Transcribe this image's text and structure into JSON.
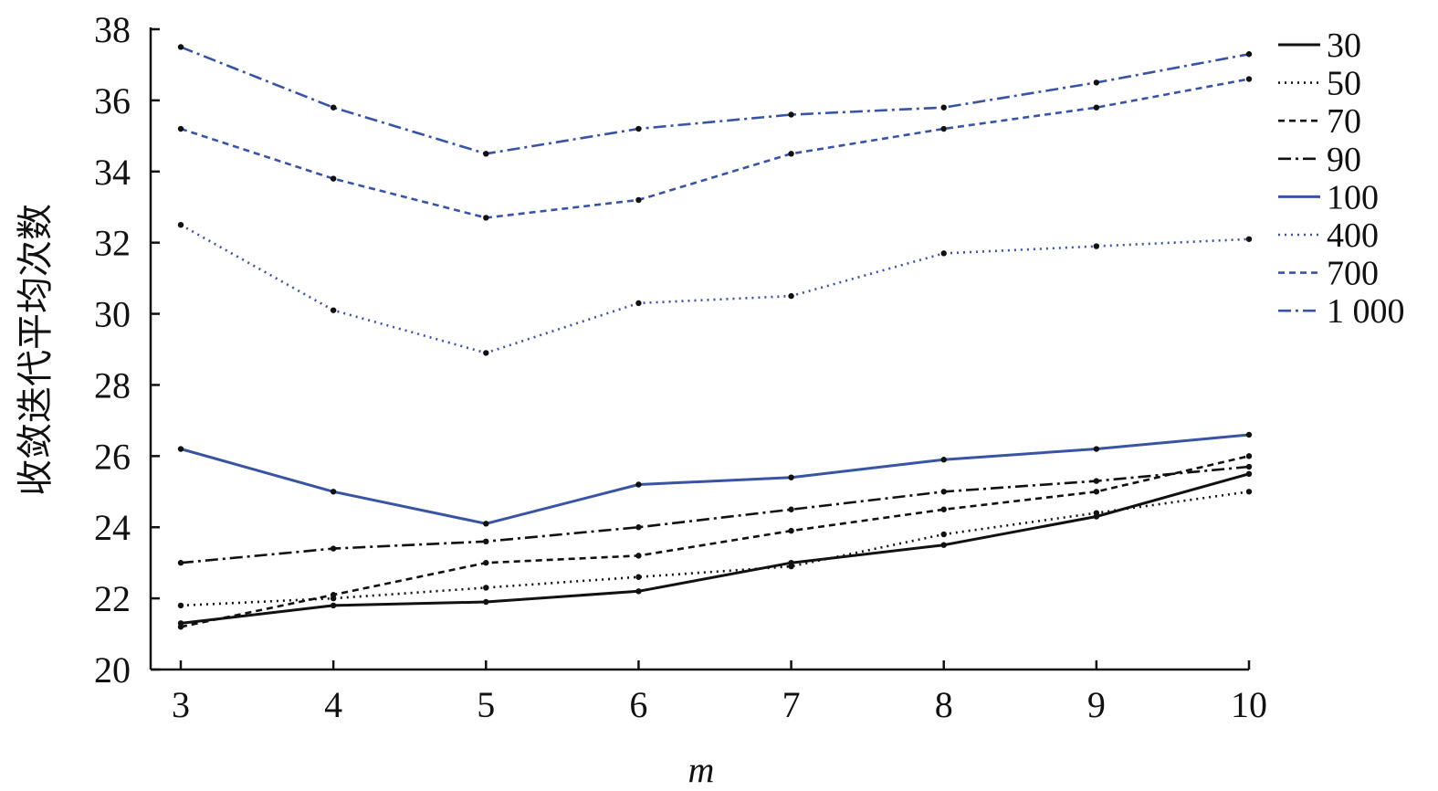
{
  "chart_data": {
    "type": "line",
    "title": "",
    "xlabel": "m",
    "ylabel": "收敛迭代平均次数",
    "x": [
      3,
      4,
      5,
      6,
      7,
      8,
      9,
      10
    ],
    "xlim": [
      3,
      10
    ],
    "ylim": [
      20,
      38
    ],
    "xticks": [
      "3",
      "4",
      "5",
      "6",
      "7",
      "8",
      "9",
      "10"
    ],
    "yticks": [
      "20",
      "22",
      "24",
      "26",
      "28",
      "30",
      "32",
      "34",
      "36",
      "38"
    ],
    "grid": false,
    "legend_position": "top-right",
    "series": [
      {
        "name": "30",
        "values": [
          21.3,
          21.8,
          21.9,
          22.2,
          23.0,
          23.5,
          24.3,
          25.5
        ],
        "color": "#111111",
        "dash": "solid"
      },
      {
        "name": "50",
        "values": [
          21.8,
          22.0,
          22.3,
          22.6,
          22.9,
          23.8,
          24.4,
          25.0
        ],
        "color": "#111111",
        "dash": "dotted"
      },
      {
        "name": "70",
        "values": [
          21.2,
          22.1,
          23.0,
          23.2,
          23.9,
          24.5,
          25.0,
          26.0
        ],
        "color": "#111111",
        "dash": "dashed"
      },
      {
        "name": "90",
        "values": [
          23.0,
          23.4,
          23.6,
          24.0,
          24.5,
          25.0,
          25.3,
          25.7
        ],
        "color": "#111111",
        "dash": "dashdot"
      },
      {
        "name": "100",
        "values": [
          26.2,
          25.0,
          24.1,
          25.2,
          25.4,
          25.9,
          26.2,
          26.6
        ],
        "color": "#3a54a4",
        "dash": "solid"
      },
      {
        "name": "400",
        "values": [
          32.5,
          30.1,
          28.9,
          30.3,
          30.5,
          31.7,
          31.9,
          32.1
        ],
        "color": "#3a54a4",
        "dash": "dotted"
      },
      {
        "name": "700",
        "values": [
          35.2,
          33.8,
          32.7,
          33.2,
          34.5,
          35.2,
          35.8,
          36.6
        ],
        "color": "#3a54a4",
        "dash": "dashed"
      },
      {
        "name": "1 000",
        "values": [
          37.5,
          35.8,
          34.5,
          35.2,
          35.6,
          35.8,
          36.5,
          37.3
        ],
        "color": "#3a54a4",
        "dash": "dashdot"
      }
    ]
  }
}
